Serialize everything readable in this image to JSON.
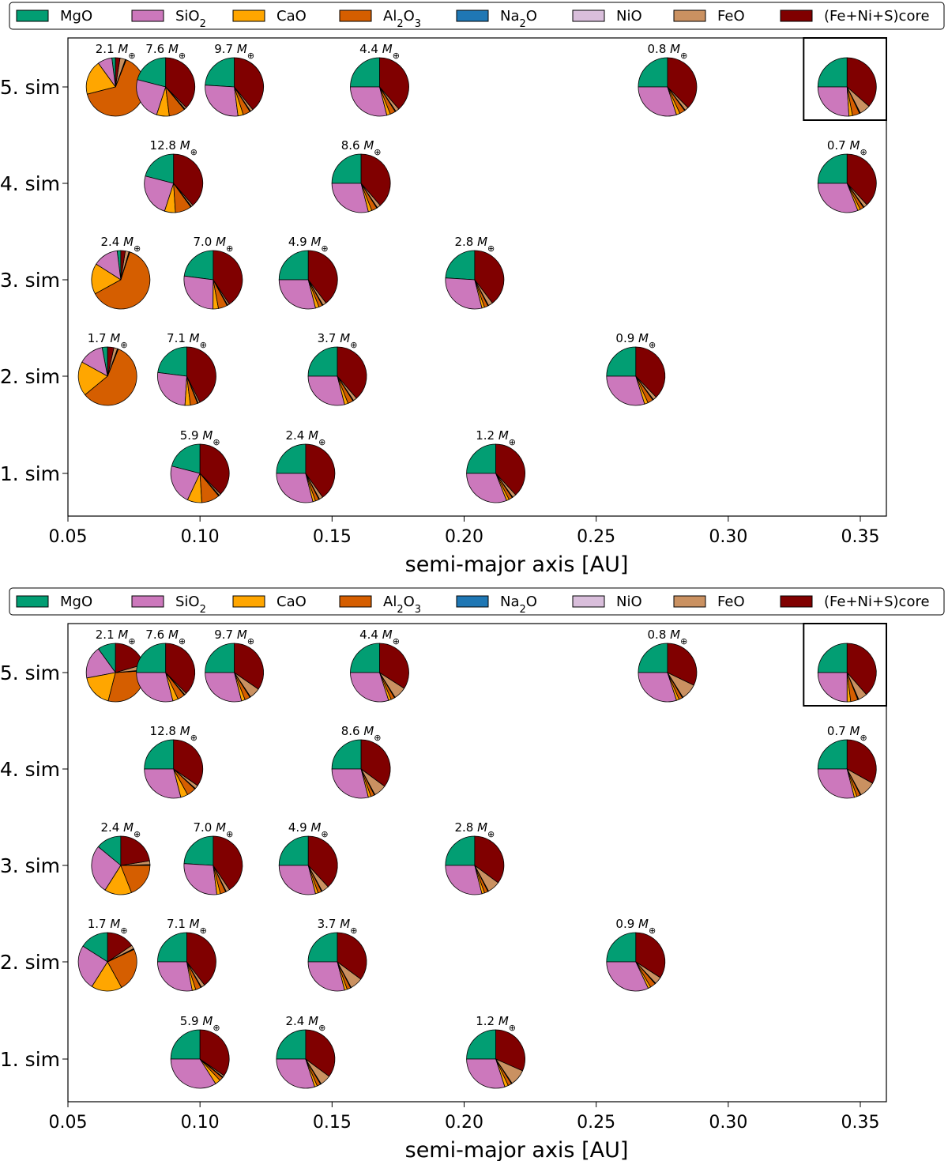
{
  "chart_data": [
    {
      "type": "pie",
      "panel": "top",
      "xlabel": "semi-major axis [AU]",
      "xlim": [
        0.05,
        0.36
      ],
      "xticks": [
        "0.05",
        "0.10",
        "0.15",
        "0.20",
        "0.25",
        "0.30",
        "0.35"
      ],
      "yticks": [
        "1. sim",
        "2. sim",
        "3. sim",
        "4. sim",
        "5. sim"
      ],
      "legend_placement": "top",
      "components": [
        "MgO",
        "SiO2",
        "CaO",
        "Al2O3",
        "Na2O",
        "NiO",
        "FeO",
        "(Fe+Ni+S)core"
      ],
      "mass_unit": "M⊕",
      "highlighted": {
        "sim": 5,
        "a": 0.345
      },
      "simulations": [
        {
          "sim": 1,
          "planets": [
            {
              "a": 0.1,
              "mass": "5.9",
              "fractions": [
                0.21,
                0.22,
                0.08,
                0.1,
                0.003,
                0.002,
                0.01,
                0.375
              ]
            },
            {
              "a": 0.14,
              "mass": "2.4",
              "fractions": [
                0.25,
                0.29,
                0.015,
                0.02,
                0.002,
                0.002,
                0.02,
                0.401
              ]
            },
            {
              "a": 0.212,
              "mass": "1.2",
              "fractions": [
                0.25,
                0.31,
                0.015,
                0.02,
                0.002,
                0.002,
                0.02,
                0.381
              ]
            }
          ]
        },
        {
          "sim": 2,
          "planets": [
            {
              "a": 0.065,
              "mass": "1.7",
              "fractions": [
                0.03,
                0.14,
                0.19,
                0.58,
                0.003,
                0.002,
                0.02,
                0.035
              ]
            },
            {
              "a": 0.095,
              "mass": "7.1",
              "fractions": [
                0.23,
                0.26,
                0.03,
                0.04,
                0.002,
                0.002,
                0.01,
                0.426
              ]
            },
            {
              "a": 0.152,
              "mass": "3.7",
              "fractions": [
                0.25,
                0.29,
                0.02,
                0.03,
                0.002,
                0.002,
                0.02,
                0.386
              ]
            },
            {
              "a": 0.265,
              "mass": "0.9",
              "fractions": [
                0.25,
                0.3,
                0.02,
                0.03,
                0.002,
                0.002,
                0.02,
                0.378
              ]
            }
          ]
        },
        {
          "sim": 3,
          "planets": [
            {
              "a": 0.07,
              "mass": "2.4",
              "fractions": [
                0.02,
                0.14,
                0.17,
                0.62,
                0.003,
                0.002,
                0.02,
                0.025
              ]
            },
            {
              "a": 0.105,
              "mass": "7.0",
              "fractions": [
                0.23,
                0.27,
                0.03,
                0.05,
                0.002,
                0.002,
                0.01,
                0.408
              ]
            },
            {
              "a": 0.141,
              "mass": "4.9",
              "fractions": [
                0.25,
                0.29,
                0.02,
                0.02,
                0.002,
                0.002,
                0.02,
                0.396
              ]
            },
            {
              "a": 0.204,
              "mass": "2.8",
              "fractions": [
                0.24,
                0.3,
                0.015,
                0.02,
                0.002,
                0.002,
                0.025,
                0.396
              ]
            }
          ]
        },
        {
          "sim": 4,
          "planets": [
            {
              "a": 0.09,
              "mass": "12.8",
              "fractions": [
                0.21,
                0.24,
                0.06,
                0.09,
                0.003,
                0.002,
                0.01,
                0.385
              ]
            },
            {
              "a": 0.161,
              "mass": "8.6",
              "fractions": [
                0.25,
                0.29,
                0.02,
                0.03,
                0.002,
                0.002,
                0.02,
                0.386
              ]
            },
            {
              "a": 0.345,
              "mass": "0.7",
              "fractions": [
                0.25,
                0.31,
                0.015,
                0.02,
                0.002,
                0.002,
                0.02,
                0.381
              ]
            }
          ]
        },
        {
          "sim": 5,
          "planets": [
            {
              "a": 0.068,
              "mass": "2.1",
              "fractions": [
                0.02,
                0.08,
                0.19,
                0.65,
                0.003,
                0.002,
                0.03,
                0.025
              ]
            },
            {
              "a": 0.087,
              "mass": "7.6",
              "fractions": [
                0.21,
                0.24,
                0.07,
                0.09,
                0.003,
                0.002,
                0.01,
                0.375
              ]
            },
            {
              "a": 0.113,
              "mass": "9.7",
              "fractions": [
                0.24,
                0.28,
                0.03,
                0.04,
                0.002,
                0.002,
                0.015,
                0.391
              ]
            },
            {
              "a": 0.168,
              "mass": "4.4",
              "fractions": [
                0.25,
                0.29,
                0.02,
                0.03,
                0.002,
                0.002,
                0.02,
                0.386
              ]
            },
            {
              "a": 0.277,
              "mass": "0.8",
              "fractions": [
                0.25,
                0.3,
                0.02,
                0.03,
                0.002,
                0.002,
                0.02,
                0.376
              ]
            },
            {
              "a": 0.345,
              "mass": "",
              "fractions": [
                0.25,
                0.26,
                0.02,
                0.04,
                0.003,
                0.002,
                0.06,
                0.365
              ]
            }
          ]
        }
      ]
    },
    {
      "type": "pie",
      "panel": "bottom",
      "xlabel": "semi-major axis [AU]",
      "xlim": [
        0.05,
        0.36
      ],
      "xticks": [
        "0.05",
        "0.10",
        "0.15",
        "0.20",
        "0.25",
        "0.30",
        "0.35"
      ],
      "yticks": [
        "1. sim",
        "2. sim",
        "3. sim",
        "4. sim",
        "5. sim"
      ],
      "legend_placement": "top",
      "components": [
        "MgO",
        "SiO2",
        "CaO",
        "Al2O3",
        "Na2O",
        "NiO",
        "FeO",
        "(Fe+Ni+S)core"
      ],
      "mass_unit": "M⊕",
      "highlighted": {
        "sim": 5,
        "a": 0.345
      },
      "simulations": [
        {
          "sim": 1,
          "planets": [
            {
              "a": 0.1,
              "mass": "5.9",
              "fractions": [
                0.25,
                0.34,
                0.03,
                0.02,
                0.002,
                0.002,
                0.01,
                0.346
              ]
            },
            {
              "a": 0.14,
              "mass": "2.4",
              "fractions": [
                0.25,
                0.3,
                0.015,
                0.02,
                0.002,
                0.002,
                0.06,
                0.351
              ]
            },
            {
              "a": 0.212,
              "mass": "1.2",
              "fractions": [
                0.25,
                0.3,
                0.02,
                0.02,
                0.002,
                0.002,
                0.09,
                0.316
              ]
            }
          ]
        },
        {
          "sim": 2,
          "planets": [
            {
              "a": 0.065,
              "mass": "1.7",
              "fractions": [
                0.16,
                0.25,
                0.17,
                0.24,
                0.003,
                0.002,
                0.02,
                0.155
              ]
            },
            {
              "a": 0.095,
              "mass": "7.1",
              "fractions": [
                0.25,
                0.28,
                0.02,
                0.03,
                0.002,
                0.002,
                0.02,
                0.396
              ]
            },
            {
              "a": 0.152,
              "mass": "3.7",
              "fractions": [
                0.25,
                0.29,
                0.015,
                0.02,
                0.002,
                0.002,
                0.07,
                0.351
              ]
            },
            {
              "a": 0.265,
              "mass": "0.9",
              "fractions": [
                0.25,
                0.32,
                0.015,
                0.03,
                0.002,
                0.002,
                0.04,
                0.341
              ]
            }
          ]
        },
        {
          "sim": 3,
          "planets": [
            {
              "a": 0.07,
              "mass": "2.4",
              "fractions": [
                0.14,
                0.27,
                0.15,
                0.19,
                0.003,
                0.002,
                0.02,
                0.225
              ]
            },
            {
              "a": 0.105,
              "mass": "7.0",
              "fractions": [
                0.24,
                0.28,
                0.02,
                0.03,
                0.002,
                0.002,
                0.02,
                0.406
              ]
            },
            {
              "a": 0.141,
              "mass": "4.9",
              "fractions": [
                0.25,
                0.29,
                0.015,
                0.02,
                0.002,
                0.002,
                0.04,
                0.381
              ]
            },
            {
              "a": 0.204,
              "mass": "2.8",
              "fractions": [
                0.25,
                0.29,
                0.015,
                0.02,
                0.002,
                0.002,
                0.07,
                0.351
              ]
            }
          ]
        },
        {
          "sim": 4,
          "planets": [
            {
              "a": 0.09,
              "mass": "12.8",
              "fractions": [
                0.25,
                0.29,
                0.04,
                0.05,
                0.002,
                0.002,
                0.02,
                0.346
              ]
            },
            {
              "a": 0.161,
              "mass": "8.6",
              "fractions": [
                0.25,
                0.29,
                0.015,
                0.02,
                0.002,
                0.002,
                0.07,
                0.351
              ]
            },
            {
              "a": 0.345,
              "mass": "0.7",
              "fractions": [
                0.25,
                0.29,
                0.015,
                0.02,
                0.002,
                0.002,
                0.09,
                0.331
              ]
            }
          ]
        },
        {
          "sim": 5,
          "planets": [
            {
              "a": 0.068,
              "mass": "2.1",
              "fractions": [
                0.1,
                0.18,
                0.18,
                0.3,
                0.003,
                0.002,
                0.03,
                0.205
              ]
            },
            {
              "a": 0.087,
              "mass": "7.6",
              "fractions": [
                0.25,
                0.29,
                0.03,
                0.04,
                0.002,
                0.002,
                0.01,
                0.376
              ]
            },
            {
              "a": 0.113,
              "mass": "9.7",
              "fractions": [
                0.25,
                0.29,
                0.02,
                0.03,
                0.002,
                0.002,
                0.06,
                0.346
              ]
            },
            {
              "a": 0.168,
              "mass": "4.4",
              "fractions": [
                0.25,
                0.3,
                0.015,
                0.02,
                0.002,
                0.002,
                0.07,
                0.341
              ]
            },
            {
              "a": 0.277,
              "mass": "0.8",
              "fractions": [
                0.25,
                0.3,
                0.015,
                0.02,
                0.002,
                0.002,
                0.09,
                0.321
              ]
            },
            {
              "a": 0.345,
              "mass": "",
              "fractions": [
                0.25,
                0.25,
                0.02,
                0.04,
                0.003,
                0.002,
                0.05,
                0.385
              ]
            }
          ]
        }
      ]
    }
  ],
  "legend": {
    "items": [
      {
        "label": "MgO",
        "color": "#029e73"
      },
      {
        "label": "SiO",
        "sub": "2",
        "color": "#cc78bc"
      },
      {
        "label": "CaO",
        "color": "#ffa600"
      },
      {
        "label": "Al",
        "sub": "2",
        "tail": "O",
        "sub2": "3",
        "color": "#d55e00"
      },
      {
        "label": "Na",
        "sub": "2",
        "tail": "O",
        "color": "#1f77b4"
      },
      {
        "label": "NiO",
        "color": "#d9bedb"
      },
      {
        "label": "FeO",
        "color": "#ca9161"
      },
      {
        "label": "(Fe+Ni+S)core",
        "color": "#800000"
      }
    ]
  },
  "colors": {
    "MgO": "#029e73",
    "SiO2": "#cc78bc",
    "CaO": "#ffa600",
    "Al2O3": "#d55e00",
    "Na2O": "#1f77b4",
    "NiO": "#d9bedb",
    "FeO": "#ca9161",
    "core": "#800000"
  }
}
